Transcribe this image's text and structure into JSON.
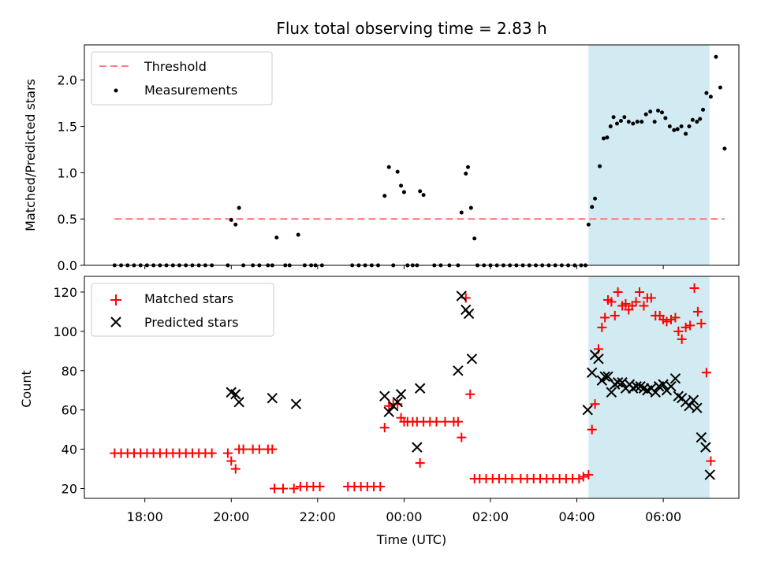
{
  "title": "Flux total observing time = 2.83 h",
  "colors": {
    "threshold": "#ff7f7f",
    "measure": "#000000",
    "matched": "#ff0000",
    "predicted": "#000000",
    "span": "#add8e6"
  },
  "chart_data": [
    {
      "type": "scatter",
      "ylabel": "Matched/Predicted stars",
      "ylim": [
        0,
        2.38
      ],
      "yticks": [
        "0.0",
        "0.5",
        "1.0",
        "1.5",
        "2.0"
      ],
      "threshold": 0.5,
      "highlight_span_hours": [
        28.27,
        31.07
      ],
      "legend": {
        "position": "top-left",
        "threshold_label": "Threshold",
        "measure_label": "Measurements"
      },
      "series": [
        {
          "name": "Measurements",
          "points": [
            [
              17.3,
              0
            ],
            [
              17.45,
              0
            ],
            [
              17.6,
              0
            ],
            [
              17.75,
              0
            ],
            [
              17.9,
              0
            ],
            [
              18.05,
              0
            ],
            [
              18.2,
              0
            ],
            [
              18.35,
              0
            ],
            [
              18.5,
              0
            ],
            [
              18.65,
              0
            ],
            [
              18.8,
              0
            ],
            [
              18.95,
              0
            ],
            [
              19.1,
              0
            ],
            [
              19.25,
              0
            ],
            [
              19.4,
              0
            ],
            [
              19.55,
              0
            ],
            [
              19.92,
              0
            ],
            [
              20.0,
              0.49
            ],
            [
              20.1,
              0.44
            ],
            [
              20.18,
              0.62
            ],
            [
              20.28,
              0
            ],
            [
              20.5,
              0
            ],
            [
              20.65,
              0
            ],
            [
              20.85,
              0
            ],
            [
              20.95,
              0
            ],
            [
              21.05,
              0.3
            ],
            [
              21.25,
              0
            ],
            [
              21.35,
              0
            ],
            [
              21.55,
              0.33
            ],
            [
              21.7,
              0
            ],
            [
              21.85,
              0
            ],
            [
              21.95,
              0
            ],
            [
              22.1,
              0
            ],
            [
              22.8,
              0
            ],
            [
              22.95,
              0
            ],
            [
              23.1,
              0
            ],
            [
              23.25,
              0
            ],
            [
              23.4,
              0
            ],
            [
              23.55,
              0.75
            ],
            [
              23.65,
              1.06
            ],
            [
              23.75,
              0
            ],
            [
              23.85,
              1.01
            ],
            [
              23.93,
              0.86
            ],
            [
              24.0,
              0.79
            ],
            [
              24.08,
              0
            ],
            [
              24.2,
              0
            ],
            [
              24.3,
              0
            ],
            [
              24.37,
              0.8
            ],
            [
              24.45,
              0.76
            ],
            [
              24.7,
              0
            ],
            [
              24.85,
              0
            ],
            [
              25.05,
              0
            ],
            [
              25.25,
              0
            ],
            [
              25.33,
              0.57
            ],
            [
              25.43,
              0.99
            ],
            [
              25.48,
              1.06
            ],
            [
              25.55,
              0.62
            ],
            [
              25.63,
              0.29
            ],
            [
              25.7,
              0
            ],
            [
              25.85,
              0
            ],
            [
              26.0,
              0
            ],
            [
              26.15,
              0
            ],
            [
              26.3,
              0
            ],
            [
              26.45,
              0
            ],
            [
              26.6,
              0
            ],
            [
              26.75,
              0
            ],
            [
              26.9,
              0
            ],
            [
              27.05,
              0
            ],
            [
              27.2,
              0
            ],
            [
              27.35,
              0
            ],
            [
              27.5,
              0
            ],
            [
              27.65,
              0
            ],
            [
              27.8,
              0
            ],
            [
              27.95,
              0
            ],
            [
              28.1,
              0
            ],
            [
              28.2,
              0
            ],
            [
              28.27,
              0.44
            ],
            [
              28.35,
              0.63
            ],
            [
              28.42,
              0.72
            ],
            [
              28.53,
              1.07
            ],
            [
              28.62,
              1.37
            ],
            [
              28.7,
              1.38
            ],
            [
              28.78,
              1.5
            ],
            [
              28.85,
              1.6
            ],
            [
              28.93,
              1.53
            ],
            [
              29.02,
              1.56
            ],
            [
              29.1,
              1.6
            ],
            [
              29.2,
              1.55
            ],
            [
              29.3,
              1.53
            ],
            [
              29.4,
              1.55
            ],
            [
              29.5,
              1.55
            ],
            [
              29.6,
              1.63
            ],
            [
              29.7,
              1.66
            ],
            [
              29.8,
              1.55
            ],
            [
              29.88,
              1.67
            ],
            [
              29.97,
              1.65
            ],
            [
              30.05,
              1.59
            ],
            [
              30.15,
              1.5
            ],
            [
              30.25,
              1.46
            ],
            [
              30.33,
              1.47
            ],
            [
              30.42,
              1.5
            ],
            [
              30.52,
              1.42
            ],
            [
              30.6,
              1.5
            ],
            [
              30.68,
              1.57
            ],
            [
              30.78,
              1.55
            ],
            [
              30.85,
              1.58
            ],
            [
              30.92,
              1.68
            ],
            [
              31.0,
              1.86
            ],
            [
              31.1,
              1.82
            ],
            [
              31.22,
              2.25
            ],
            [
              31.32,
              1.92
            ],
            [
              31.42,
              1.26
            ]
          ]
        }
      ]
    },
    {
      "type": "scatter",
      "xlabel": "Time (UTC)",
      "ylabel": "Count",
      "ylim": [
        15,
        128
      ],
      "yticks": [
        "20",
        "40",
        "60",
        "80",
        "100",
        "120"
      ],
      "xticks": [
        "18:00",
        "20:00",
        "22:00",
        "00:00",
        "02:00",
        "04:00",
        "06:00"
      ],
      "highlight_span_hours": [
        28.27,
        31.07
      ],
      "legend": {
        "position": "top-left"
      },
      "series": [
        {
          "name": "Matched stars",
          "points": [
            [
              17.3,
              38
            ],
            [
              17.45,
              38
            ],
            [
              17.6,
              38
            ],
            [
              17.75,
              38
            ],
            [
              17.9,
              38
            ],
            [
              18.05,
              38
            ],
            [
              18.2,
              38
            ],
            [
              18.35,
              38
            ],
            [
              18.5,
              38
            ],
            [
              18.65,
              38
            ],
            [
              18.8,
              38
            ],
            [
              18.95,
              38
            ],
            [
              19.1,
              38
            ],
            [
              19.25,
              38
            ],
            [
              19.4,
              38
            ],
            [
              19.55,
              38
            ],
            [
              19.92,
              38
            ],
            [
              20.0,
              34
            ],
            [
              20.1,
              30
            ],
            [
              20.18,
              40
            ],
            [
              20.28,
              40
            ],
            [
              20.5,
              40
            ],
            [
              20.65,
              40
            ],
            [
              20.85,
              40
            ],
            [
              20.95,
              40
            ],
            [
              21.0,
              20
            ],
            [
              21.2,
              20
            ],
            [
              21.45,
              20
            ],
            [
              21.6,
              21
            ],
            [
              21.75,
              21
            ],
            [
              21.9,
              21
            ],
            [
              22.05,
              21
            ],
            [
              22.7,
              21
            ],
            [
              22.85,
              21
            ],
            [
              23.0,
              21
            ],
            [
              23.15,
              21
            ],
            [
              23.3,
              21
            ],
            [
              23.45,
              21
            ],
            [
              23.55,
              51
            ],
            [
              23.65,
              62
            ],
            [
              23.75,
              63
            ],
            [
              23.85,
              63
            ],
            [
              23.93,
              56
            ],
            [
              24.0,
              54
            ],
            [
              24.08,
              54
            ],
            [
              24.2,
              54
            ],
            [
              24.3,
              54
            ],
            [
              24.37,
              33
            ],
            [
              24.45,
              54
            ],
            [
              24.6,
              54
            ],
            [
              24.75,
              54
            ],
            [
              24.95,
              54
            ],
            [
              25.15,
              54
            ],
            [
              25.25,
              54
            ],
            [
              25.33,
              46
            ],
            [
              25.43,
              117
            ],
            [
              25.53,
              68
            ],
            [
              25.63,
              25
            ],
            [
              25.75,
              25
            ],
            [
              25.9,
              25
            ],
            [
              26.05,
              25
            ],
            [
              26.2,
              25
            ],
            [
              26.35,
              25
            ],
            [
              26.5,
              25
            ],
            [
              26.7,
              25
            ],
            [
              26.85,
              25
            ],
            [
              27.0,
              25
            ],
            [
              27.15,
              25
            ],
            [
              27.3,
              25
            ],
            [
              27.45,
              25
            ],
            [
              27.6,
              25
            ],
            [
              27.75,
              25
            ],
            [
              27.9,
              25
            ],
            [
              28.05,
              25
            ],
            [
              28.15,
              26
            ],
            [
              28.27,
              27
            ],
            [
              28.35,
              50
            ],
            [
              28.42,
              63
            ],
            [
              28.5,
              91
            ],
            [
              28.58,
              102
            ],
            [
              28.65,
              107
            ],
            [
              28.72,
              116
            ],
            [
              28.8,
              115
            ],
            [
              28.88,
              108
            ],
            [
              28.95,
              120
            ],
            [
              29.05,
              113
            ],
            [
              29.13,
              114
            ],
            [
              29.2,
              111
            ],
            [
              29.28,
              113
            ],
            [
              29.37,
              115
            ],
            [
              29.45,
              120
            ],
            [
              29.55,
              113
            ],
            [
              29.63,
              117
            ],
            [
              29.72,
              117
            ],
            [
              29.82,
              108
            ],
            [
              29.92,
              108
            ],
            [
              30.0,
              106
            ],
            [
              30.08,
              105
            ],
            [
              30.18,
              106
            ],
            [
              30.28,
              107
            ],
            [
              30.35,
              100
            ],
            [
              30.43,
              96
            ],
            [
              30.52,
              102
            ],
            [
              30.62,
              103
            ],
            [
              30.72,
              122
            ],
            [
              30.8,
              110
            ],
            [
              30.88,
              104
            ],
            [
              31.0,
              79
            ],
            [
              31.1,
              34
            ]
          ]
        },
        {
          "name": "Predicted stars",
          "points": [
            [
              20.0,
              69
            ],
            [
              20.1,
              68
            ],
            [
              20.18,
              64
            ],
            [
              20.95,
              66
            ],
            [
              21.5,
              63
            ],
            [
              23.55,
              67
            ],
            [
              23.65,
              59
            ],
            [
              23.75,
              62
            ],
            [
              23.85,
              64
            ],
            [
              23.93,
              68
            ],
            [
              24.3,
              41
            ],
            [
              24.37,
              71
            ],
            [
              25.25,
              80
            ],
            [
              25.33,
              118
            ],
            [
              25.43,
              111
            ],
            [
              25.5,
              109
            ],
            [
              25.57,
              86
            ],
            [
              28.25,
              60
            ],
            [
              28.35,
              79
            ],
            [
              28.42,
              88
            ],
            [
              28.5,
              86
            ],
            [
              28.58,
              75
            ],
            [
              28.65,
              77
            ],
            [
              28.72,
              77
            ],
            [
              28.8,
              69
            ],
            [
              28.88,
              73
            ],
            [
              28.95,
              74
            ],
            [
              29.05,
              74
            ],
            [
              29.13,
              71
            ],
            [
              29.22,
              73
            ],
            [
              29.3,
              71
            ],
            [
              29.38,
              72
            ],
            [
              29.47,
              72
            ],
            [
              29.55,
              71
            ],
            [
              29.63,
              70
            ],
            [
              29.72,
              71
            ],
            [
              29.82,
              69
            ],
            [
              29.9,
              72
            ],
            [
              30.0,
              73
            ],
            [
              30.08,
              70
            ],
            [
              30.18,
              72
            ],
            [
              30.28,
              76
            ],
            [
              30.35,
              67
            ],
            [
              30.43,
              66
            ],
            [
              30.52,
              64
            ],
            [
              30.6,
              62
            ],
            [
              30.7,
              65
            ],
            [
              30.78,
              61
            ],
            [
              30.88,
              46
            ],
            [
              30.98,
              41
            ],
            [
              31.08,
              27
            ]
          ]
        }
      ]
    }
  ]
}
